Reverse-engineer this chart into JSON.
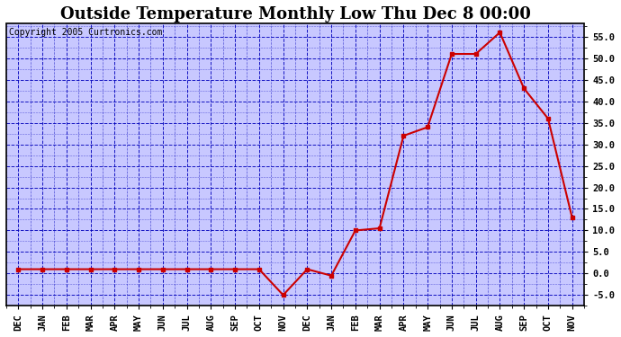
{
  "title": "Outside Temperature Monthly Low Thu Dec 8 00:00",
  "copyright": "Copyright 2005 Curtronics.com",
  "x_labels": [
    "DEC",
    "JAN",
    "FEB",
    "MAR",
    "APR",
    "MAY",
    "JUN",
    "JUL",
    "AUG",
    "SEP",
    "OCT",
    "NOV",
    "DEC",
    "JAN",
    "FEB",
    "MAR",
    "APR",
    "MAY",
    "JUN",
    "JUL",
    "AUG",
    "SEP",
    "OCT",
    "NOV"
  ],
  "y_values": [
    1.0,
    1.0,
    1.0,
    1.0,
    1.0,
    1.0,
    1.0,
    1.0,
    1.0,
    1.0,
    1.0,
    -5.0,
    1.0,
    -0.5,
    10.0,
    10.5,
    32.0,
    34.0,
    51.0,
    51.0,
    56.0,
    43.0,
    36.0,
    13.0
  ],
  "line_color": "#cc0000",
  "marker": "s",
  "marker_color": "#cc0000",
  "marker_size": 3,
  "fig_bg_color": "#ffffff",
  "plot_bg_color": "#c8c8ff",
  "grid_color": "#0000bb",
  "grid_style": "--",
  "ylim": [
    -7.5,
    58.0
  ],
  "yticks": [
    -5.0,
    0.0,
    5.0,
    10.0,
    15.0,
    20.0,
    25.0,
    30.0,
    35.0,
    40.0,
    45.0,
    50.0,
    55.0
  ],
  "title_fontsize": 13,
  "copyright_fontsize": 7,
  "tick_fontsize": 7.5,
  "border_color": "#000000"
}
